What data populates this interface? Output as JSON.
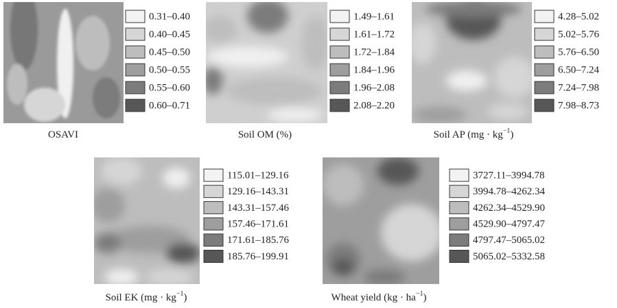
{
  "legend_colors": [
    "#f3f3f3",
    "#d6d6d6",
    "#bdbdbd",
    "#9e9e9e",
    "#7c7c7c",
    "#575757"
  ],
  "panels": [
    {
      "title": {
        "text": "OSAVI"
      },
      "legend": [
        "0.31–0.40",
        "0.40–0.45",
        "0.45–0.50",
        "0.50–0.55",
        "0.55–0.60",
        "0.60–0.71"
      ]
    },
    {
      "title": {
        "text": "Soil OM (%)"
      },
      "legend": [
        "1.49–1.61",
        "1.61–1.72",
        "1.72–1.84",
        "1.84–1.96",
        "1.96–2.08",
        "2.08–2.20"
      ]
    },
    {
      "title": {
        "text": "Soil AP (mg · kg",
        "sup": "−1",
        "end": ")"
      },
      "legend": [
        "4.28–5.02",
        "5.02–5.76",
        "5.76–6.50",
        "6.50–7.24",
        "7.24–7.98",
        "7.98–8.73"
      ]
    },
    {
      "title": {
        "text": "Soil EK (mg · kg",
        "sup": "−1",
        "end": ")"
      },
      "legend": [
        "115.01–129.16",
        "129.16–143.31",
        "143.31–157.46",
        "157.46–171.61",
        "171.61–185.76",
        "185.76–199.91"
      ]
    },
    {
      "title": {
        "text": "Wheat yield (kg · ha",
        "sup": "−1",
        "end": ")"
      },
      "legend": [
        "3727.11–3994.78",
        "3994.78–4262.34",
        "4262.34–4529.90",
        "4529.90–4797.47",
        "4797.47–5065.02",
        "5065.02–5332.58"
      ]
    }
  ]
}
